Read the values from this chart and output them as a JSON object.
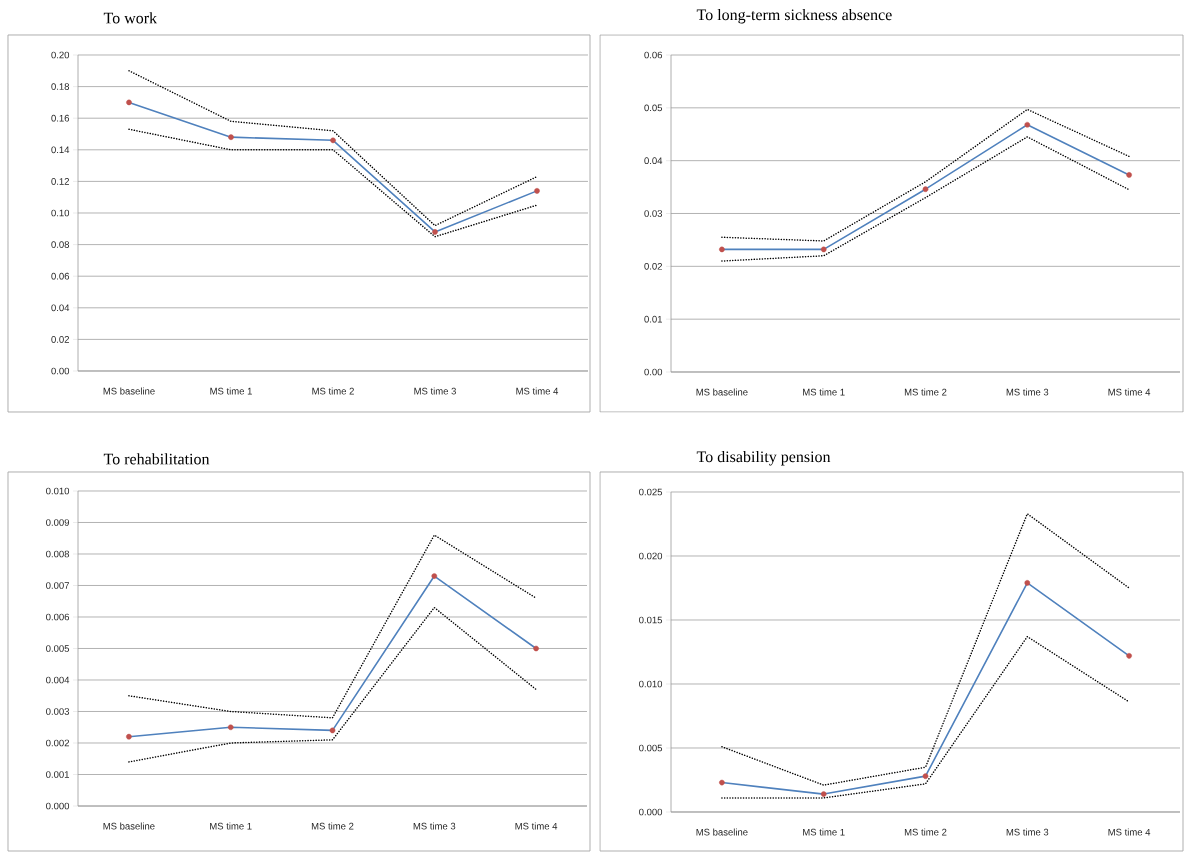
{
  "chart_data": [
    {
      "type": "line",
      "title": "To work",
      "categories": [
        "MS baseline",
        "MS time 1",
        "MS time 2",
        "MS time 3",
        "MS time 4"
      ],
      "ylim": [
        0,
        0.2
      ],
      "grid": "y",
      "marker": "circle",
      "line_style": "solid",
      "yticks": [
        {
          "value": 0,
          "label": "0.00"
        },
        {
          "value": 0.02,
          "label": "0.02"
        },
        {
          "value": 0.04,
          "label": "0.04"
        },
        {
          "value": 0.06,
          "label": "0.06"
        },
        {
          "value": 0.08,
          "label": "0.08"
        },
        {
          "value": 0.1,
          "label": "0.10"
        },
        {
          "value": 0.12,
          "label": "0.12"
        },
        {
          "value": 0.14,
          "label": "0.14"
        },
        {
          "value": 0.16,
          "label": "0.16"
        },
        {
          "value": 0.18,
          "label": "0.18"
        },
        {
          "value": 0.2,
          "label": "0.20"
        }
      ],
      "series": [
        {
          "color": "#000000",
          "marker": "none",
          "line_style": "dotted",
          "values": [
            0.153,
            0.14,
            0.14,
            0.085,
            0.105
          ]
        },
        {
          "color": "#000000",
          "marker": "none",
          "line_style": "dotted",
          "values": [
            0.19,
            0.158,
            0.152,
            0.092,
            0.123
          ]
        },
        {
          "color": "#4f81bd",
          "colors": [
            "#c0504d",
            "#c0504d",
            "#c0504d",
            "#c0504d",
            "#c0504d"
          ],
          "values": [
            0.17,
            0.148,
            0.146,
            0.088,
            0.114
          ]
        }
      ]
    },
    {
      "type": "line",
      "title": "To long-term sickness absence",
      "categories": [
        "MS baseline",
        "MS time 1",
        "MS time 2",
        "MS time 3",
        "MS time 4"
      ],
      "ylim": [
        0,
        0.06
      ],
      "grid": "y",
      "marker": "circle",
      "line_style": "solid",
      "yticks": [
        {
          "value": 0,
          "label": "0.00"
        },
        {
          "value": 0.01,
          "label": "0.01"
        },
        {
          "value": 0.02,
          "label": "0.02"
        },
        {
          "value": 0.03,
          "label": "0.03"
        },
        {
          "value": 0.04,
          "label": "0.04"
        },
        {
          "value": 0.05,
          "label": "0.05"
        },
        {
          "value": 0.06,
          "label": "0.06"
        }
      ],
      "series": [
        {
          "color": "#000000",
          "marker": "none",
          "line_style": "dotted",
          "values": [
            0.021,
            0.022,
            0.033,
            0.0445,
            0.0345
          ]
        },
        {
          "color": "#000000",
          "marker": "none",
          "line_style": "dotted",
          "values": [
            0.0255,
            0.0248,
            0.036,
            0.0497,
            0.0408
          ]
        },
        {
          "color": "#4f81bd",
          "colors": [
            "#c0504d",
            "#c0504d",
            "#c0504d",
            "#c0504d",
            "#c0504d"
          ],
          "values": [
            0.0232,
            0.0232,
            0.0346,
            0.0468,
            0.0373
          ]
        }
      ]
    },
    {
      "type": "line",
      "title": "To rehabilitation",
      "categories": [
        "MS baseline",
        "MS time 1",
        "MS time 2",
        "MS time 3",
        "MS time 4"
      ],
      "ylim": [
        0,
        0.01
      ],
      "grid": "y",
      "marker": "circle",
      "line_style": "solid",
      "yticks": [
        {
          "value": 0,
          "label": "0.000"
        },
        {
          "value": 0.001,
          "label": "0.001"
        },
        {
          "value": 0.002,
          "label": "0.002"
        },
        {
          "value": 0.003,
          "label": "0.003"
        },
        {
          "value": 0.004,
          "label": "0.004"
        },
        {
          "value": 0.005,
          "label": "0.005"
        },
        {
          "value": 0.006,
          "label": "0.006"
        },
        {
          "value": 0.007,
          "label": "0.007"
        },
        {
          "value": 0.008,
          "label": "0.008"
        },
        {
          "value": 0.009,
          "label": "0.009"
        },
        {
          "value": 0.01,
          "label": "0.010"
        }
      ],
      "series": [
        {
          "color": "#000000",
          "marker": "none",
          "line_style": "dotted",
          "values": [
            0.0014,
            0.002,
            0.0021,
            0.0063,
            0.0037
          ]
        },
        {
          "color": "#000000",
          "marker": "none",
          "line_style": "dotted",
          "values": [
            0.0035,
            0.003,
            0.0028,
            0.0086,
            0.0066
          ]
        },
        {
          "color": "#4f81bd",
          "colors": [
            "#c0504d",
            "#c0504d",
            "#c0504d",
            "#c0504d",
            "#c0504d"
          ],
          "values": [
            0.0022,
            0.0025,
            0.0024,
            0.0073,
            0.005
          ]
        }
      ]
    },
    {
      "type": "line",
      "title": "To disability pension",
      "categories": [
        "MS baseline",
        "MS time 1",
        "MS time 2",
        "MS time 3",
        "MS time 4"
      ],
      "ylim": [
        0,
        0.025
      ],
      "grid": "y",
      "marker": "circle",
      "line_style": "solid",
      "yticks": [
        {
          "value": 0,
          "label": "0.000"
        },
        {
          "value": 0.005,
          "label": "0.005"
        },
        {
          "value": 0.01,
          "label": "0.010"
        },
        {
          "value": 0.015,
          "label": "0.015"
        },
        {
          "value": 0.02,
          "label": "0.020"
        },
        {
          "value": 0.025,
          "label": "0.025"
        }
      ],
      "series": [
        {
          "color": "#000000",
          "marker": "none",
          "line_style": "dotted",
          "values": [
            0.0011,
            0.0011,
            0.0022,
            0.0137,
            0.0086
          ]
        },
        {
          "color": "#000000",
          "marker": "none",
          "line_style": "dotted",
          "values": [
            0.0051,
            0.0021,
            0.0035,
            0.0233,
            0.0175
          ]
        },
        {
          "color": "#4f81bd",
          "colors": [
            "#c0504d",
            "#c0504d",
            "#c0504d",
            "#c0504d",
            "#c0504d"
          ],
          "values": [
            0.0023,
            0.0014,
            0.0028,
            0.0179,
            0.0122
          ]
        }
      ]
    }
  ]
}
